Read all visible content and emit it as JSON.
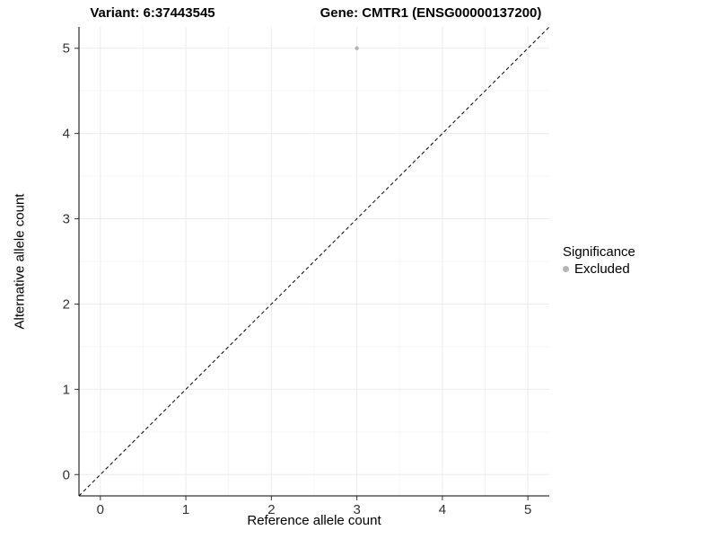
{
  "titles": {
    "left": "Variant: 6:37443545",
    "right": "Gene: CMTR1 (ENSG00000137200)"
  },
  "axes": {
    "x_label": "Reference allele count",
    "y_label": "Alternative allele count"
  },
  "legend": {
    "title": "Significance",
    "items": [
      {
        "label": "Excluded",
        "color": "#b5b5b5"
      }
    ]
  },
  "colors": {
    "grid_major": "#ebebeb",
    "grid_minor": "#f5f5f5",
    "axis_line": "#000000",
    "tick_mark": "#333333",
    "tick_label": "#333333",
    "reference_line": "#000000"
  },
  "chart_data": {
    "type": "scatter",
    "title": "Variant: 6:37443545 | Gene: CMTR1 (ENSG00000137200)",
    "xlabel": "Reference allele count",
    "ylabel": "Alternative allele count",
    "xlim": [
      -0.25,
      5.25
    ],
    "ylim": [
      -0.25,
      5.25
    ],
    "x_ticks": [
      0,
      1,
      2,
      3,
      4,
      5
    ],
    "y_ticks": [
      0,
      1,
      2,
      3,
      4,
      5
    ],
    "grid": true,
    "legend_position": "right",
    "series": [
      {
        "name": "Excluded",
        "color": "#b5b5b5",
        "points": [
          {
            "x": 3,
            "y": 5
          }
        ]
      }
    ],
    "reference_line": {
      "style": "dashed",
      "from": [
        -0.25,
        -0.25
      ],
      "to": [
        5.25,
        5.25
      ],
      "meaning": "y = x identity line"
    }
  }
}
